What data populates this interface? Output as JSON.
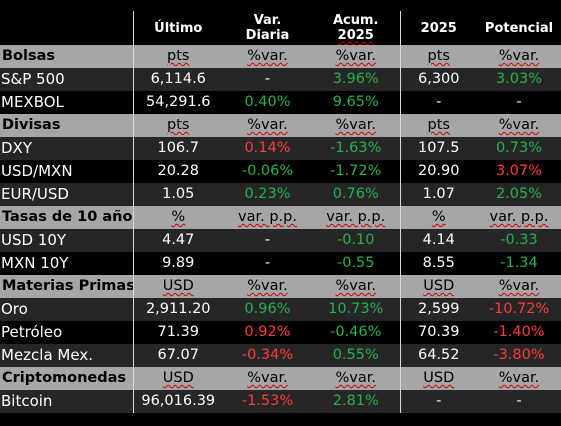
{
  "header": {
    "col_last": "Último",
    "col_daily_1": "Var.",
    "col_daily_2": "Diaria",
    "col_ytd_1": "Acum.",
    "col_ytd_2": "2025",
    "col_2025": "2025",
    "col_potential": "Potencial"
  },
  "sections": [
    {
      "title": "Bolsas",
      "units": [
        "pts",
        "%var.",
        "%var.",
        "pts",
        "%var."
      ],
      "rows": [
        {
          "name": "S&P 500",
          "last": "6,114.6",
          "daily": "-",
          "ytd": "3.96%",
          "target": "6,300",
          "potential": "3.03%"
        },
        {
          "name": "MEXBOL",
          "last": "54,291.6",
          "daily": "0.40%",
          "ytd": "9.65%",
          "target": "-",
          "potential": "-"
        }
      ]
    },
    {
      "title": "Divisas",
      "units": [
        "pts",
        "%var.",
        "%var.",
        "pts",
        "%var."
      ],
      "rows": [
        {
          "name": "DXY",
          "last": "106.7",
          "daily": "0.14%",
          "ytd": "-1.63%",
          "target": "107.5",
          "potential": "0.73%"
        },
        {
          "name": "USD/MXN",
          "last": "20.28",
          "daily": "-0.06%",
          "ytd": "-1.72%",
          "target": "20.90",
          "potential": "3.07%"
        },
        {
          "name": "EUR/USD",
          "last": "1.05",
          "daily": "0.23%",
          "ytd": "0.76%",
          "target": "1.07",
          "potential": "2.05%"
        }
      ]
    },
    {
      "title": "Tasas de 10 años",
      "units": [
        "%",
        "var. p.p.",
        "var. p.p.",
        "%",
        "var. p.p."
      ],
      "rows": [
        {
          "name": "USD 10Y",
          "last": "4.47",
          "daily": "-",
          "ytd": "-0.10",
          "target": "4.14",
          "potential": "-0.33"
        },
        {
          "name": "MXN 10Y",
          "last": "9.89",
          "daily": "-",
          "ytd": "-0.55",
          "target": "8.55",
          "potential": "-1.34"
        }
      ]
    },
    {
      "title": "Materias Primas",
      "units": [
        "USD",
        "%var.",
        "%var.",
        "USD",
        "%var."
      ],
      "rows": [
        {
          "name": "Oro",
          "last": "2,911.20",
          "daily": "0.96%",
          "ytd": "10.73%",
          "target": "2,599",
          "potential": "-10.72%"
        },
        {
          "name": "Petróleo",
          "last": "71.39",
          "daily": "0.92%",
          "ytd": "-0.46%",
          "target": "70.39",
          "potential": "-1.40%"
        },
        {
          "name": "Mezcla Mex.",
          "last": "67.07",
          "daily": "-0.34%",
          "ytd": "0.55%",
          "target": "64.52",
          "potential": "-3.80%"
        }
      ]
    },
    {
      "title": "Criptomonedas",
      "units": [
        "USD",
        "%var.",
        "%var.",
        "USD",
        "%var."
      ],
      "rows": [
        {
          "name": "Bitcoin",
          "last": "96,016.39",
          "daily": "-1.53%",
          "ytd": "2.81%",
          "target": "-",
          "potential": "-"
        }
      ]
    }
  ],
  "colors": {
    "positive": "#23b34b",
    "negative": "#ff3b3b",
    "section_bg": "#a6a6a6",
    "stripe_bg": "#262626"
  },
  "cell_colors": {
    "S&P 500": {
      "daily": "none",
      "ytd": "pos",
      "potential": "pos"
    },
    "MEXBOL": {
      "daily": "pos",
      "ytd": "pos",
      "potential": "none"
    },
    "DXY": {
      "daily": "neg",
      "ytd": "pos",
      "potential": "pos"
    },
    "USD/MXN": {
      "daily": "pos",
      "ytd": "pos",
      "potential": "neg"
    },
    "EUR/USD": {
      "daily": "pos",
      "ytd": "pos",
      "potential": "pos"
    },
    "USD 10Y": {
      "daily": "none",
      "ytd": "pos",
      "potential": "pos"
    },
    "MXN 10Y": {
      "daily": "none",
      "ytd": "pos",
      "potential": "pos"
    },
    "Oro": {
      "daily": "pos",
      "ytd": "pos",
      "potential": "neg"
    },
    "Petróleo": {
      "daily": "neg",
      "ytd": "pos",
      "potential": "neg"
    },
    "Mezcla Mex.": {
      "daily": "neg",
      "ytd": "pos",
      "potential": "neg"
    },
    "Bitcoin": {
      "daily": "neg",
      "ytd": "pos",
      "potential": "none"
    }
  }
}
